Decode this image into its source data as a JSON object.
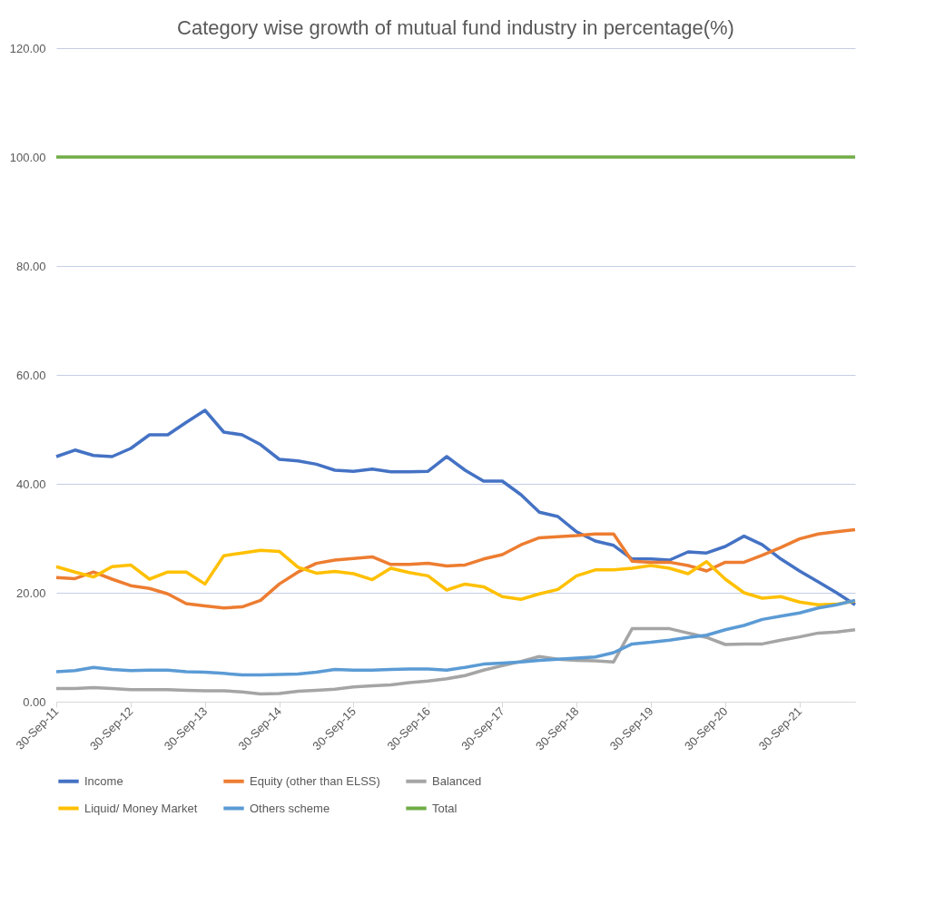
{
  "chart_data": {
    "type": "line",
    "title": "Category wise growth of mutual fund industry in percentage(%)",
    "x": [
      "2011-09-30",
      "2011-12-31",
      "2012-03-31",
      "2012-06-30",
      "2012-09-30",
      "2012-12-31",
      "2013-03-31",
      "2013-06-30",
      "2013-09-30",
      "2013-12-31",
      "2014-03-31",
      "2014-06-30",
      "2014-09-30",
      "2014-12-31",
      "2015-03-31",
      "2015-06-30",
      "2015-09-30",
      "2015-12-31",
      "2016-03-31",
      "2016-06-30",
      "2016-09-30",
      "2016-12-31",
      "2017-03-31",
      "2017-06-30",
      "2017-09-30",
      "2017-12-31",
      "2018-03-31",
      "2018-06-30",
      "2018-09-30",
      "2018-12-31",
      "2019-03-31",
      "2019-06-30",
      "2019-09-30",
      "2019-12-31",
      "2020-03-31",
      "2020-06-30",
      "2020-09-30",
      "2020-12-31",
      "2021-03-31",
      "2021-06-30",
      "2021-09-30",
      "2021-12-31",
      "2022-03-31",
      "2022-06-30"
    ],
    "series": [
      {
        "name": "Income",
        "color": "#4472c4",
        "values": [
          45,
          46.2,
          45.2,
          45,
          46.5,
          49,
          49,
          51.3,
          53.5,
          49.5,
          49,
          47.2,
          44.5,
          44.2,
          43.6,
          42.5,
          42.3,
          42.7,
          42.2,
          42.2,
          42.3,
          45,
          42.5,
          40.5,
          40.5,
          38,
          34.8,
          34,
          31.2,
          29.5,
          28.7,
          26.2,
          26.2,
          26,
          27.5,
          27.3,
          28.5,
          30.4,
          28.8,
          26.2,
          24,
          22,
          20,
          17.8
        ]
      },
      {
        "name": "Equity (other than ELSS)",
        "color": "#ed7d31",
        "values": [
          22.8,
          22.6,
          23.8,
          22.5,
          21.3,
          20.8,
          19.8,
          18,
          17.6,
          17.2,
          17.4,
          18.6,
          21.6,
          23.8,
          25.4,
          26,
          26.3,
          26.6,
          25.2,
          25.2,
          25.4,
          24.9,
          25.1,
          26.2,
          27,
          28.8,
          30.1,
          30.3,
          30.5,
          30.8,
          30.8,
          25.8,
          25.6,
          25.6,
          25,
          24,
          25.6,
          25.6,
          26.9,
          28.3,
          29.9,
          30.8,
          31.2,
          31.6
        ]
      },
      {
        "name": "Balanced",
        "color": "#a5a5a5",
        "values": [
          2.4,
          2.4,
          2.6,
          2.4,
          2.2,
          2.2,
          2.2,
          2.1,
          2,
          2,
          1.8,
          1.4,
          1.5,
          1.9,
          2.1,
          2.3,
          2.7,
          2.9,
          3.1,
          3.5,
          3.8,
          4.2,
          4.8,
          5.8,
          6.6,
          7.4,
          8.3,
          7.8,
          7.6,
          7.5,
          7.3,
          13.4,
          13.4,
          13.4,
          12.6,
          11.8,
          10.5,
          10.6,
          10.6,
          11.3,
          11.9,
          12.6,
          12.8,
          13.2
        ]
      },
      {
        "name": "Liquid/ Money Market",
        "color": "#ffc000",
        "values": [
          24.8,
          23.8,
          22.9,
          24.8,
          25.1,
          22.5,
          23.8,
          23.8,
          21.6,
          26.8,
          27.3,
          27.8,
          27.6,
          24.7,
          23.6,
          23.9,
          23.5,
          22.4,
          24.5,
          23.7,
          23.1,
          20.5,
          21.6,
          21.1,
          19.3,
          18.8,
          19.8,
          20.6,
          23.1,
          24.2,
          24.2,
          24.5,
          25,
          24.5,
          23.5,
          25.7,
          22.5,
          20,
          19,
          19.3,
          18.3,
          17.8,
          17.9,
          18.5
        ]
      },
      {
        "name": "Others scheme",
        "color": "#5b9bd5",
        "values": [
          5.5,
          5.7,
          6.3,
          5.9,
          5.7,
          5.8,
          5.8,
          5.5,
          5.4,
          5.2,
          4.9,
          4.9,
          5,
          5.1,
          5.4,
          5.9,
          5.8,
          5.8,
          5.9,
          6,
          6,
          5.8,
          6.3,
          6.9,
          7.1,
          7.3,
          7.6,
          7.8,
          8,
          8.2,
          9,
          10.6,
          10.9,
          11.3,
          11.8,
          12.2,
          13.2,
          14,
          15.1,
          15.7,
          16.3,
          17.2,
          17.8,
          18.6
        ]
      },
      {
        "name": "Total",
        "color": "#70ad47",
        "values": [
          100,
          100,
          100,
          100,
          100,
          100,
          100,
          100,
          100,
          100,
          100,
          100,
          100,
          100,
          100,
          100,
          100,
          100,
          100,
          100,
          100,
          100,
          100,
          100,
          100,
          100,
          100,
          100,
          100,
          100,
          100,
          100,
          100,
          100,
          100,
          100,
          100,
          100,
          100,
          100,
          100,
          100,
          100,
          100
        ]
      }
    ],
    "xlim": [
      "2011-09-30",
      "2022-06-30"
    ],
    "xticks": [
      {
        "value": "2011-09-30",
        "label": "30-Sep-11"
      },
      {
        "value": "2012-09-30",
        "label": "30-Sep-12"
      },
      {
        "value": "2013-09-30",
        "label": "30-Sep-13"
      },
      {
        "value": "2014-09-30",
        "label": "30-Sep-14"
      },
      {
        "value": "2015-09-30",
        "label": "30-Sep-15"
      },
      {
        "value": "2016-09-30",
        "label": "30-Sep-16"
      },
      {
        "value": "2017-09-30",
        "label": "30-Sep-17"
      },
      {
        "value": "2018-09-30",
        "label": "30-Sep-18"
      },
      {
        "value": "2019-09-30",
        "label": "30-Sep-19"
      },
      {
        "value": "2020-09-30",
        "label": "30-Sep-20"
      },
      {
        "value": "2021-09-30",
        "label": "30-Sep-21"
      }
    ],
    "ylim": [
      0,
      120
    ],
    "yticks": [
      {
        "value": 0,
        "label": "0.00"
      },
      {
        "value": 20,
        "label": "20.00"
      },
      {
        "value": 40,
        "label": "40.00"
      },
      {
        "value": 60,
        "label": "60.00"
      },
      {
        "value": 80,
        "label": "80.00"
      },
      {
        "value": 100,
        "label": "100.00"
      },
      {
        "value": 120,
        "label": "120.00"
      }
    ],
    "grid": "y",
    "legend": "bottom",
    "line_style": "solid",
    "marker": "none"
  }
}
